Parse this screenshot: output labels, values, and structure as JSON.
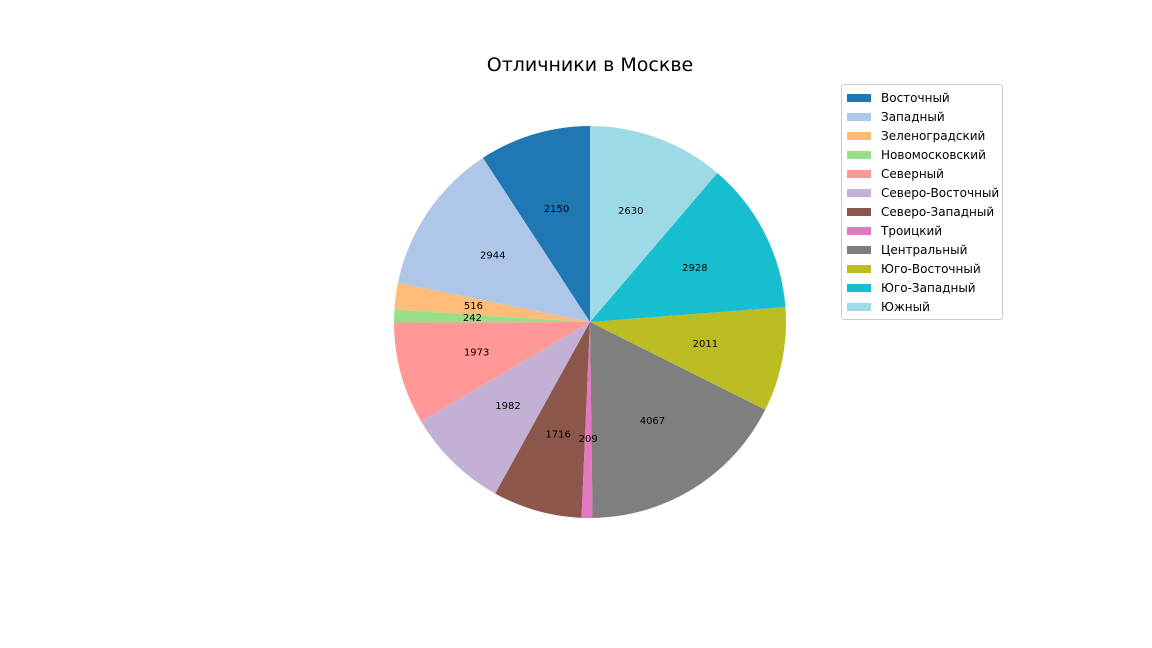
{
  "chart_data": {
    "type": "pie",
    "title": "Отличники в Москве",
    "categories": [
      "Восточный",
      "Западный",
      "Зеленоградский",
      "Новомосковский",
      "Северный",
      "Северо-Восточный",
      "Северо-Западный",
      "Троицкий",
      "Центральный",
      "Юго-Восточный",
      "Юго-Западный",
      "Южный"
    ],
    "values": [
      2150,
      2944,
      516,
      242,
      1973,
      1982,
      1716,
      209,
      4067,
      2011,
      2928,
      2630
    ],
    "value_labels": [
      "2150",
      "2944",
      "516",
      "242",
      "1973",
      "1982",
      "1716",
      "209",
      "4067",
      "2011",
      "2928",
      "2630"
    ],
    "colors": [
      "#1f77b4",
      "#aec7e8",
      "#ffbb78",
      "#98df8a",
      "#ff9896",
      "#c5b0d5",
      "#8c564b",
      "#e377c2",
      "#7f7f7f",
      "#bcbd22",
      "#17becf",
      "#9edae5"
    ],
    "start_angle_deg": 90,
    "direction": "counterclockwise",
    "legend_position": "top-right"
  }
}
